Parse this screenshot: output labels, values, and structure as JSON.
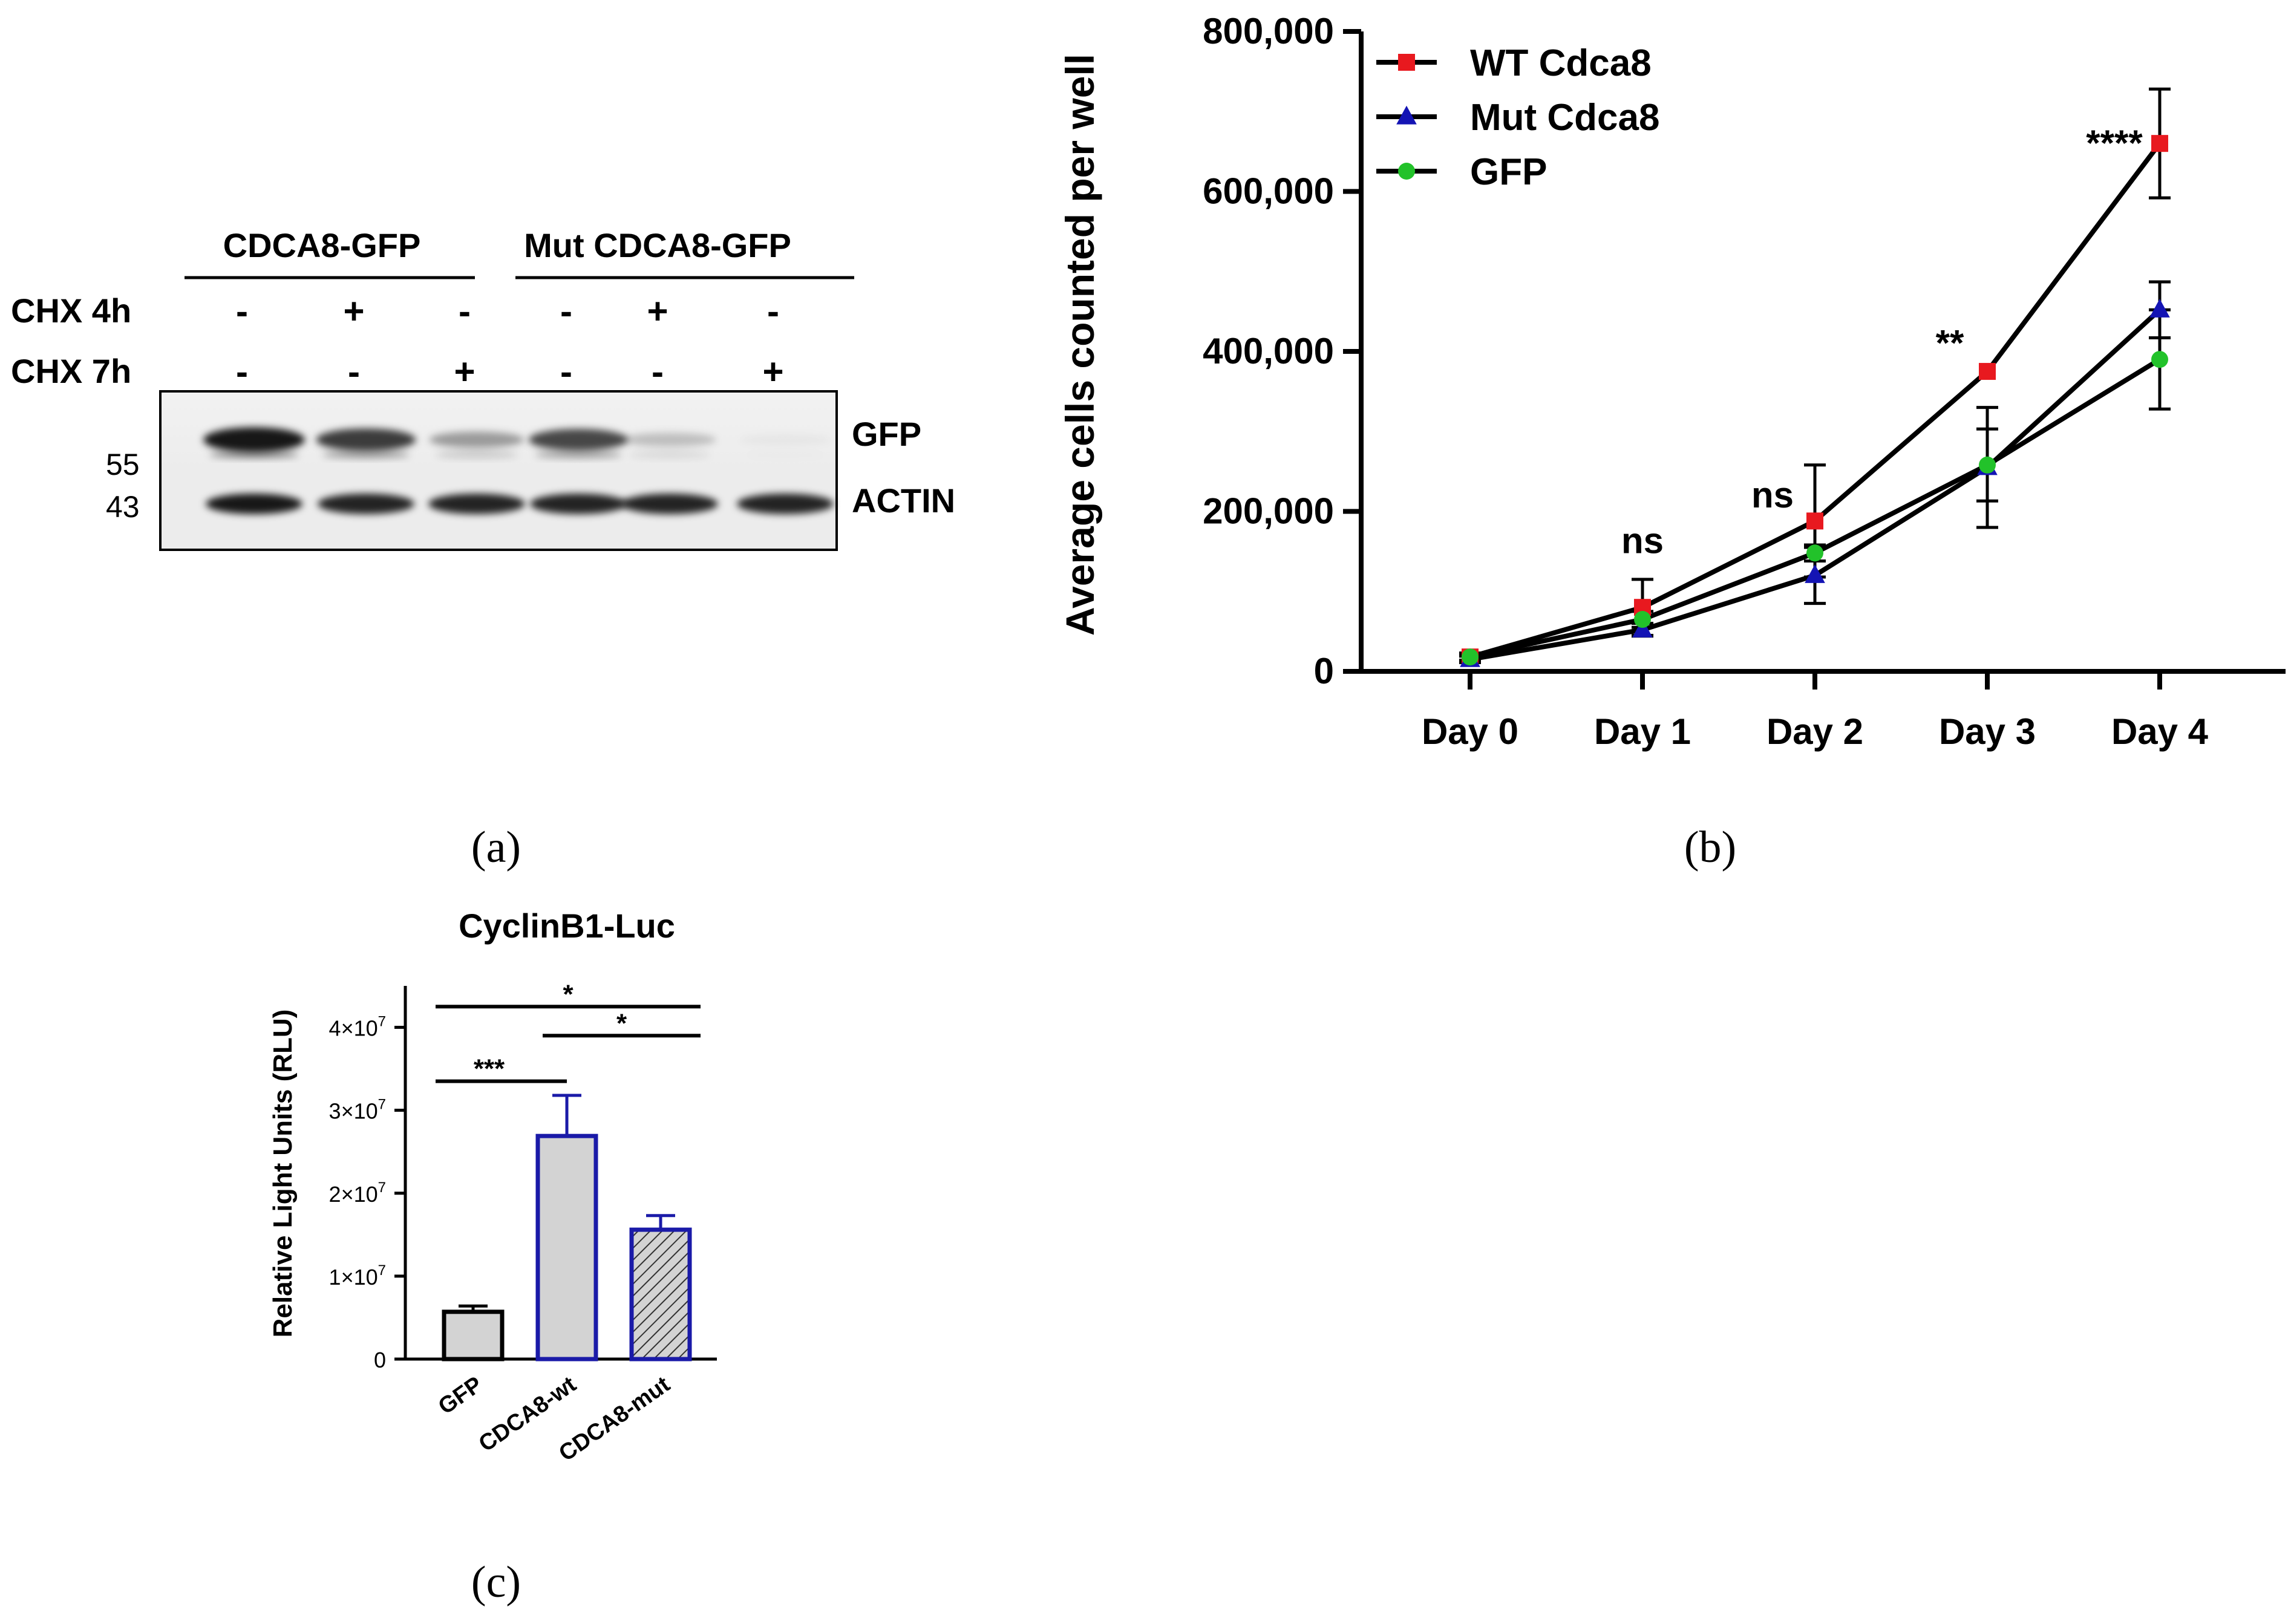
{
  "panels": {
    "a": "(a)",
    "b": "(b)",
    "c": "(c)"
  },
  "western_blot": {
    "groups": [
      "CDCA8-GFP",
      "Mut CDCA8-GFP"
    ],
    "row_labels": [
      "CHX 4h",
      "CHX 7h"
    ],
    "chx_4h": [
      "-",
      "+",
      "-",
      "-",
      "+",
      "-"
    ],
    "chx_7h": [
      "-",
      "-",
      "+",
      "-",
      "-",
      "+"
    ],
    "band_labels": [
      "GFP",
      "ACTIN"
    ],
    "mw_markers": [
      "55",
      "43"
    ],
    "gfp_intensity": [
      0.9,
      0.75,
      0.35,
      0.7,
      0.2,
      0.03
    ],
    "actin_intensity": [
      0.9,
      0.85,
      0.85,
      0.85,
      0.85,
      0.85
    ]
  },
  "chart_data": [
    {
      "type": "line",
      "id": "growth",
      "ylabel": "Average cells counted per well",
      "xlabel": "",
      "categories": [
        "Day 0",
        "Day 1",
        "Day 2",
        "Day 3",
        "Day 4"
      ],
      "ylim": [
        0,
        800000
      ],
      "yticks": [
        0,
        200000,
        400000,
        600000,
        800000
      ],
      "ytick_labels": [
        "0",
        "200,000",
        "400,000",
        "600,000",
        "800,000"
      ],
      "legend_position": "top-left",
      "series": [
        {
          "name": "WT Cdca8",
          "color": "#e8191f",
          "marker": "square",
          "values": [
            18000,
            80000,
            188000,
            375000,
            660000
          ],
          "errors": [
            5000,
            35000,
            70000,
            0,
            68000
          ]
        },
        {
          "name": "Mut Cdca8",
          "color": "#1414b4",
          "marker": "triangle",
          "values": [
            15000,
            52000,
            120000,
            255000,
            452000
          ],
          "errors": [
            4000,
            8000,
            35000,
            75000,
            35000
          ]
        },
        {
          "name": "GFP",
          "color": "#22c22a",
          "marker": "circle",
          "values": [
            18000,
            65000,
            148000,
            258000,
            390000
          ],
          "errors": [
            4000,
            10000,
            10000,
            45000,
            62000
          ]
        }
      ],
      "annotations": [
        {
          "label": "ns",
          "category": "Day 1",
          "y": 148000
        },
        {
          "label": "ns",
          "category": "Day 2",
          "y": 205000
        },
        {
          "label": "**",
          "category": "Day 3",
          "y": 395000
        },
        {
          "label": "****",
          "category": "Day 4",
          "y": 645000
        }
      ]
    },
    {
      "type": "bar",
      "id": "luciferase",
      "title": "CyclinB1-Luc",
      "ylabel": "Relative Light Units (RLU)",
      "xlabel": "",
      "categories": [
        "GFP",
        "CDCA8-wt",
        "CDCA8-mut"
      ],
      "values": [
        5700000,
        26900000,
        15600000
      ],
      "errors": [
        700000,
        4900000,
        1700000
      ],
      "ylim": [
        0,
        45000000
      ],
      "yticks": [
        0,
        10000000,
        20000000,
        30000000,
        40000000
      ],
      "ytick_labels": [
        {
          "mantissa": "0"
        },
        {
          "mantissa": "1×10",
          "exp": "7"
        },
        {
          "mantissa": "2×10",
          "exp": "7"
        },
        {
          "mantissa": "3×10",
          "exp": "7"
        },
        {
          "mantissa": "4×10",
          "exp": "7"
        }
      ],
      "bar_styles": [
        {
          "fill": "#d3d3d3",
          "stroke": "#000000",
          "hatch": false
        },
        {
          "fill": "#d3d3d3",
          "stroke": "#1a1aa8",
          "hatch": false
        },
        {
          "fill": "#d3d3d3",
          "stroke": "#1a1aa8",
          "hatch": true
        }
      ],
      "significance": [
        {
          "from": 0,
          "to": 2,
          "label": "*",
          "y": 42500000
        },
        {
          "from": 1,
          "to": 2,
          "label": "*",
          "y": 39000000
        },
        {
          "from": 0,
          "to": 1,
          "label": "***",
          "y": 33500000
        }
      ]
    }
  ]
}
